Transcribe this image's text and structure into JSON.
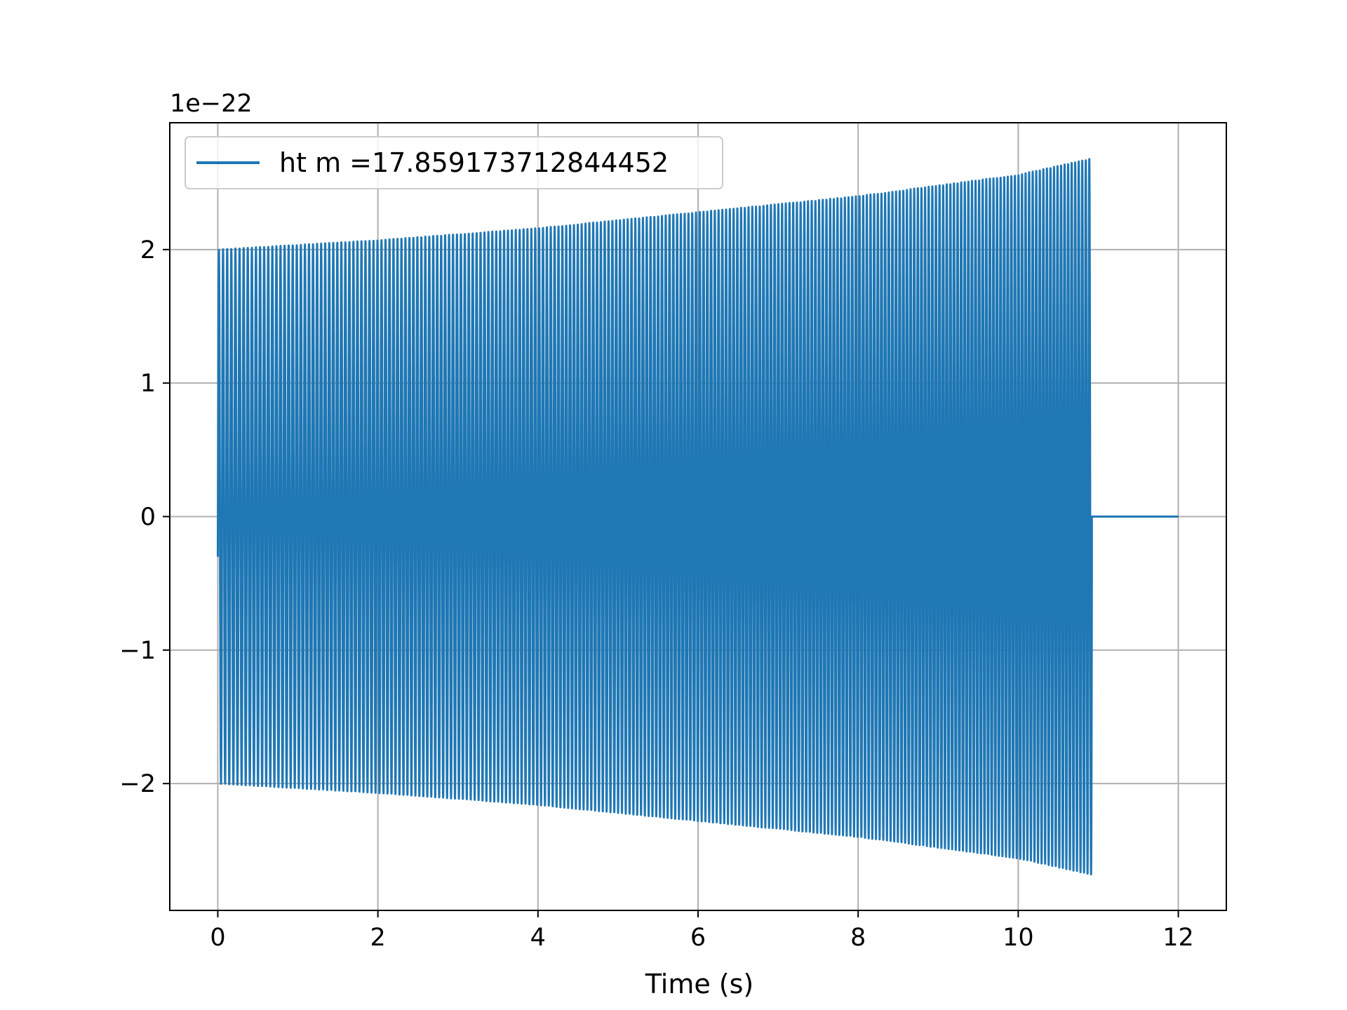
{
  "chart_data": {
    "type": "line",
    "title": "",
    "xlabel": "Time (s)",
    "ylabel": "",
    "xlim": [
      -0.6,
      12.6
    ],
    "ylim": [
      -2.95,
      2.95
    ],
    "y_offset_text": "1e−22",
    "grid": true,
    "legend_placement": "upper-left",
    "x_ticks": [
      0,
      2,
      4,
      6,
      8,
      10,
      12
    ],
    "x_tick_labels": [
      "0",
      "2",
      "4",
      "6",
      "8",
      "10",
      "12"
    ],
    "y_ticks": [
      -2,
      -1,
      0,
      1,
      2
    ],
    "y_tick_labels": [
      "−2",
      "−1",
      "0",
      "1",
      "2"
    ],
    "series": [
      {
        "name": "ht m =17.859173712844452",
        "color": "#1f77b4",
        "signal_start": 0,
        "signal_end": 10.92,
        "data_end": 12.0,
        "initial_value": -0.3,
        "approx_cycles": 230,
        "envelope": [
          [
            0,
            2.0
          ],
          [
            2,
            2.07
          ],
          [
            4,
            2.16
          ],
          [
            6,
            2.28
          ],
          [
            8,
            2.4
          ],
          [
            10,
            2.56
          ],
          [
            10.9,
            2.68
          ]
        ],
        "flat_value_after_signal": 0
      }
    ]
  }
}
